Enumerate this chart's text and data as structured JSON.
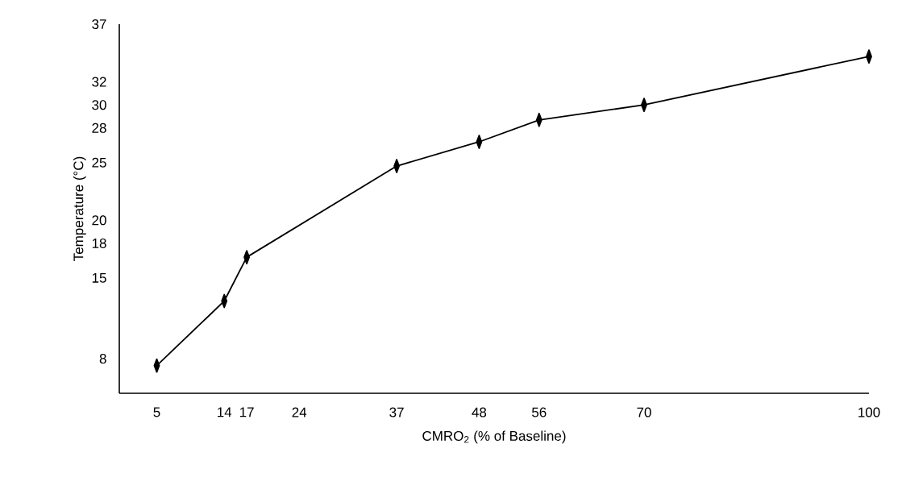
{
  "chart_data": {
    "type": "line",
    "xlabel": "CMRO$_{2}$ (% of Baseline)",
    "ylabel": "Temperature (°C)",
    "x": [
      5,
      14,
      17,
      37,
      48,
      56,
      70,
      100
    ],
    "series": [
      {
        "color": "#000000",
        "values": [
          7.4,
          13.0,
          16.8,
          24.7,
          26.8,
          28.7,
          30.0,
          34.2
        ]
      }
    ],
    "xlim": [
      0,
      100
    ],
    "ylim": [
      5,
      37
    ],
    "xticks": [
      5,
      14,
      17,
      24,
      37,
      48,
      56,
      70,
      100
    ],
    "yticks": [
      8,
      15,
      18,
      20,
      25,
      28,
      30,
      32,
      37
    ],
    "grid": false,
    "marker": "diamond",
    "line_style": "solid"
  }
}
